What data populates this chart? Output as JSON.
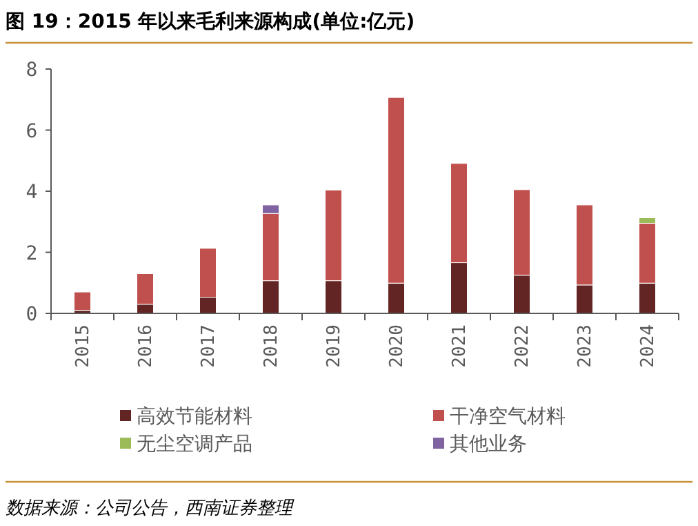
{
  "chart_data": {
    "type": "bar",
    "stacked": true,
    "title": "图 19：2015 年以来毛利来源构成(单位:亿元)",
    "categories": [
      "2015",
      "2016",
      "2017",
      "2018",
      "2019",
      "2020",
      "2021",
      "2022",
      "2023",
      "2024"
    ],
    "series": [
      {
        "name": "高效节能材料",
        "color": "#632523",
        "values": [
          0.1,
          0.3,
          0.53,
          1.07,
          1.07,
          0.99,
          1.66,
          1.25,
          0.93,
          0.99
        ]
      },
      {
        "name": "干净空气材料",
        "color": "#c0504d",
        "values": [
          0.6,
          1.0,
          1.6,
          2.2,
          2.97,
          6.08,
          3.25,
          2.8,
          2.62,
          1.96
        ]
      },
      {
        "name": "无尘空调产品",
        "color": "#9bbb59",
        "values": [
          null,
          null,
          null,
          null,
          null,
          null,
          null,
          null,
          null,
          0.18
        ]
      },
      {
        "name": "其他业务",
        "color": "#8064a2",
        "values": [
          null,
          null,
          null,
          0.28,
          null,
          null,
          null,
          null,
          null,
          null
        ]
      }
    ],
    "ylim": [
      0,
      8
    ],
    "yticks": [
      0,
      2,
      4,
      6,
      8
    ],
    "grid": false,
    "legend": "bottom",
    "annotations": [
      "数据来源：公司公告，西南证券整理"
    ]
  }
}
